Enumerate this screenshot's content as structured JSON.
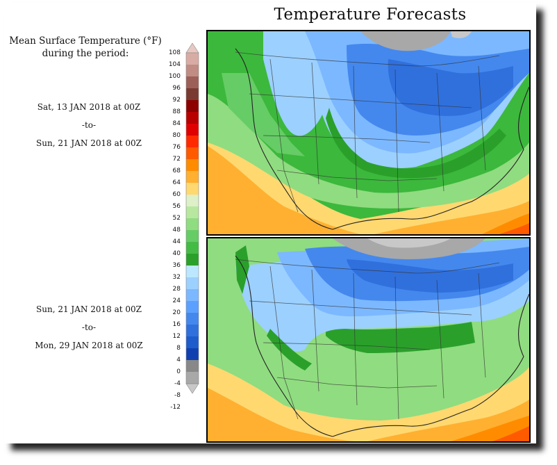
{
  "title": "Temperature Forecasts",
  "legend": {
    "title_line1": "Mean Surface Temperature (°F)",
    "title_line2": "during the period:",
    "ticks": [
      "108",
      "104",
      "100",
      "96",
      "92",
      "88",
      "84",
      "80",
      "76",
      "72",
      "68",
      "64",
      "60",
      "56",
      "52",
      "48",
      "44",
      "40",
      "36",
      "32",
      "28",
      "24",
      "20",
      "16",
      "12",
      "8",
      "4",
      "0",
      "-4",
      "-8",
      "-12"
    ],
    "colors": [
      "#e8c8c0",
      "#d8aca4",
      "#c08c84",
      "#9c6058",
      "#7a3a32",
      "#8c0000",
      "#b80000",
      "#e00000",
      "#ff2a00",
      "#ff5a00",
      "#ff8c00",
      "#ffb030",
      "#ffd870",
      "#ddf0c8",
      "#b8e8a0",
      "#90dc80",
      "#66cc66",
      "#44bb44",
      "#2aa02a",
      "#bce8ff",
      "#9cd0ff",
      "#7cb8ff",
      "#5ca0ff",
      "#4488ee",
      "#3070dd",
      "#1e5ccc",
      "#1040b0",
      "#888888",
      "#a8a8a8",
      "#c8c8c8"
    ]
  },
  "periods": [
    {
      "start": "Sat, 13 JAN 2018 at 00Z",
      "sep": "-to-",
      "end": "Sun, 21 JAN 2018 at 00Z"
    },
    {
      "start": "Sun, 21 JAN 2018 at 00Z",
      "sep": "-to-",
      "end": "Mon, 29 JAN 2018 at 00Z"
    }
  ]
}
